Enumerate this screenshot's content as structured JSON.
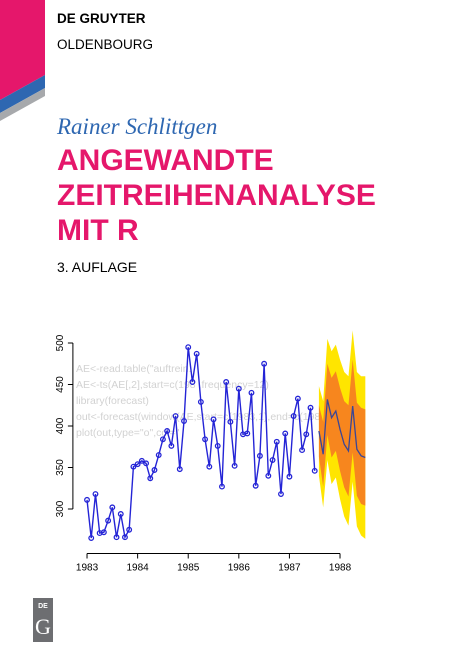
{
  "publisher": {
    "name": "DE GRUYTER",
    "imprint": "OLDENBOURG"
  },
  "author": "Rainer Schlittgen",
  "title": [
    "ANGEWANDTE",
    "ZEITREIHENANALYSE",
    "MIT R"
  ],
  "edition": "3. AUFLAGE",
  "chart_data": {
    "type": "line",
    "x": [
      1983,
      1983.083,
      1983.167,
      1983.25,
      1983.333,
      1983.417,
      1983.5,
      1983.583,
      1983.667,
      1983.75,
      1983.833,
      1983.917,
      1984,
      1984.083,
      1984.167,
      1984.25,
      1984.333,
      1984.417,
      1984.5,
      1984.583,
      1984.667,
      1984.75,
      1984.833,
      1984.917,
      1985,
      1985.083,
      1985.167,
      1985.25,
      1985.333,
      1985.417,
      1985.5,
      1985.583,
      1985.667,
      1985.75,
      1985.833,
      1985.917,
      1986,
      1986.083,
      1986.167,
      1986.25,
      1986.333,
      1986.417,
      1986.5,
      1986.583,
      1986.667,
      1986.75,
      1986.833,
      1986.917,
      1987,
      1987.083,
      1987.167,
      1987.25,
      1987.333,
      1987.417,
      1987.5
    ],
    "values": [
      311,
      265,
      318,
      271,
      272,
      286,
      302,
      266,
      294,
      266,
      275,
      351,
      354,
      358,
      355,
      337,
      347,
      365,
      384,
      394,
      376,
      412,
      348,
      406,
      495,
      453,
      487,
      429,
      384,
      351,
      408,
      376,
      327,
      453,
      405,
      352,
      445,
      390,
      391,
      440,
      328,
      364,
      475,
      340,
      359,
      381,
      318,
      391,
      339,
      412,
      433,
      371,
      390,
      422,
      346
    ],
    "color": "#2424d6",
    "forecast": {
      "x": [
        1987.583,
        1987.667,
        1987.75,
        1987.833,
        1987.917,
        1988,
        1988.083,
        1988.167,
        1988.25,
        1988.333,
        1988.417,
        1988.5
      ],
      "values": [
        394,
        366,
        432,
        410,
        418,
        396,
        378,
        370,
        424,
        372,
        364,
        362
      ],
      "lower80": [
        363,
        327,
        389,
        362,
        370,
        346,
        326,
        315,
        368,
        316,
        306,
        304
      ],
      "upper80": [
        425,
        405,
        475,
        458,
        466,
        446,
        430,
        425,
        480,
        428,
        422,
        420
      ],
      "lower95": [
        340,
        302,
        359,
        330,
        338,
        312,
        291,
        280,
        333,
        279,
        268,
        264
      ],
      "upper95": [
        448,
        430,
        505,
        490,
        498,
        480,
        465,
        460,
        515,
        465,
        460,
        460
      ],
      "color": "#3a4696",
      "color80": "#f7861e",
      "color95": "#ffe500"
    },
    "code_lines": [
      "AE<-read.table(\"auftrein.",
      "AE<-ts(AE[,2],start=c(198 ,frequency=12)",
      "library(forecast)",
      "out<-forecast(window(AE,start=c(1983,1),end=c(1987,12",
      "plot(out,type=\"o\",col=\""
    ],
    "xlim": [
      1982.8,
      1988.8
    ],
    "xticks": [
      1983,
      1984,
      1985,
      1986,
      1987,
      1988
    ],
    "ylim": [
      250,
      540
    ],
    "yticks": [
      300,
      350,
      400,
      450,
      500
    ]
  },
  "logo": {
    "line1": "DE",
    "line2": "G"
  }
}
